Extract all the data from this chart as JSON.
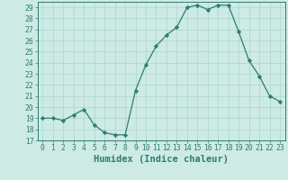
{
  "x": [
    0,
    1,
    2,
    3,
    4,
    5,
    6,
    7,
    8,
    9,
    10,
    11,
    12,
    13,
    14,
    15,
    16,
    17,
    18,
    19,
    20,
    21,
    22,
    23
  ],
  "y": [
    19,
    19,
    18.8,
    19.3,
    19.8,
    18.4,
    17.7,
    17.5,
    17.5,
    21.5,
    23.8,
    25.5,
    26.5,
    27.2,
    29.0,
    29.2,
    28.8,
    29.2,
    29.2,
    26.8,
    24.2,
    22.8,
    21.0,
    20.5
  ],
  "xlabel": "Humidex (Indice chaleur)",
  "ylim": [
    17,
    29.5
  ],
  "xlim": [
    -0.5,
    23.5
  ],
  "yticks": [
    17,
    18,
    19,
    20,
    21,
    22,
    23,
    24,
    25,
    26,
    27,
    28,
    29
  ],
  "xticks": [
    0,
    1,
    2,
    3,
    4,
    5,
    6,
    7,
    8,
    9,
    10,
    11,
    12,
    13,
    14,
    15,
    16,
    17,
    18,
    19,
    20,
    21,
    22,
    23
  ],
  "line_color": "#2e7d6e",
  "marker": "D",
  "marker_size": 2.2,
  "bg_color": "#cdeae5",
  "grid_color": "#b0d8d2",
  "tick_label_fontsize": 5.8,
  "xlabel_fontsize": 7.5,
  "line_width": 0.9
}
